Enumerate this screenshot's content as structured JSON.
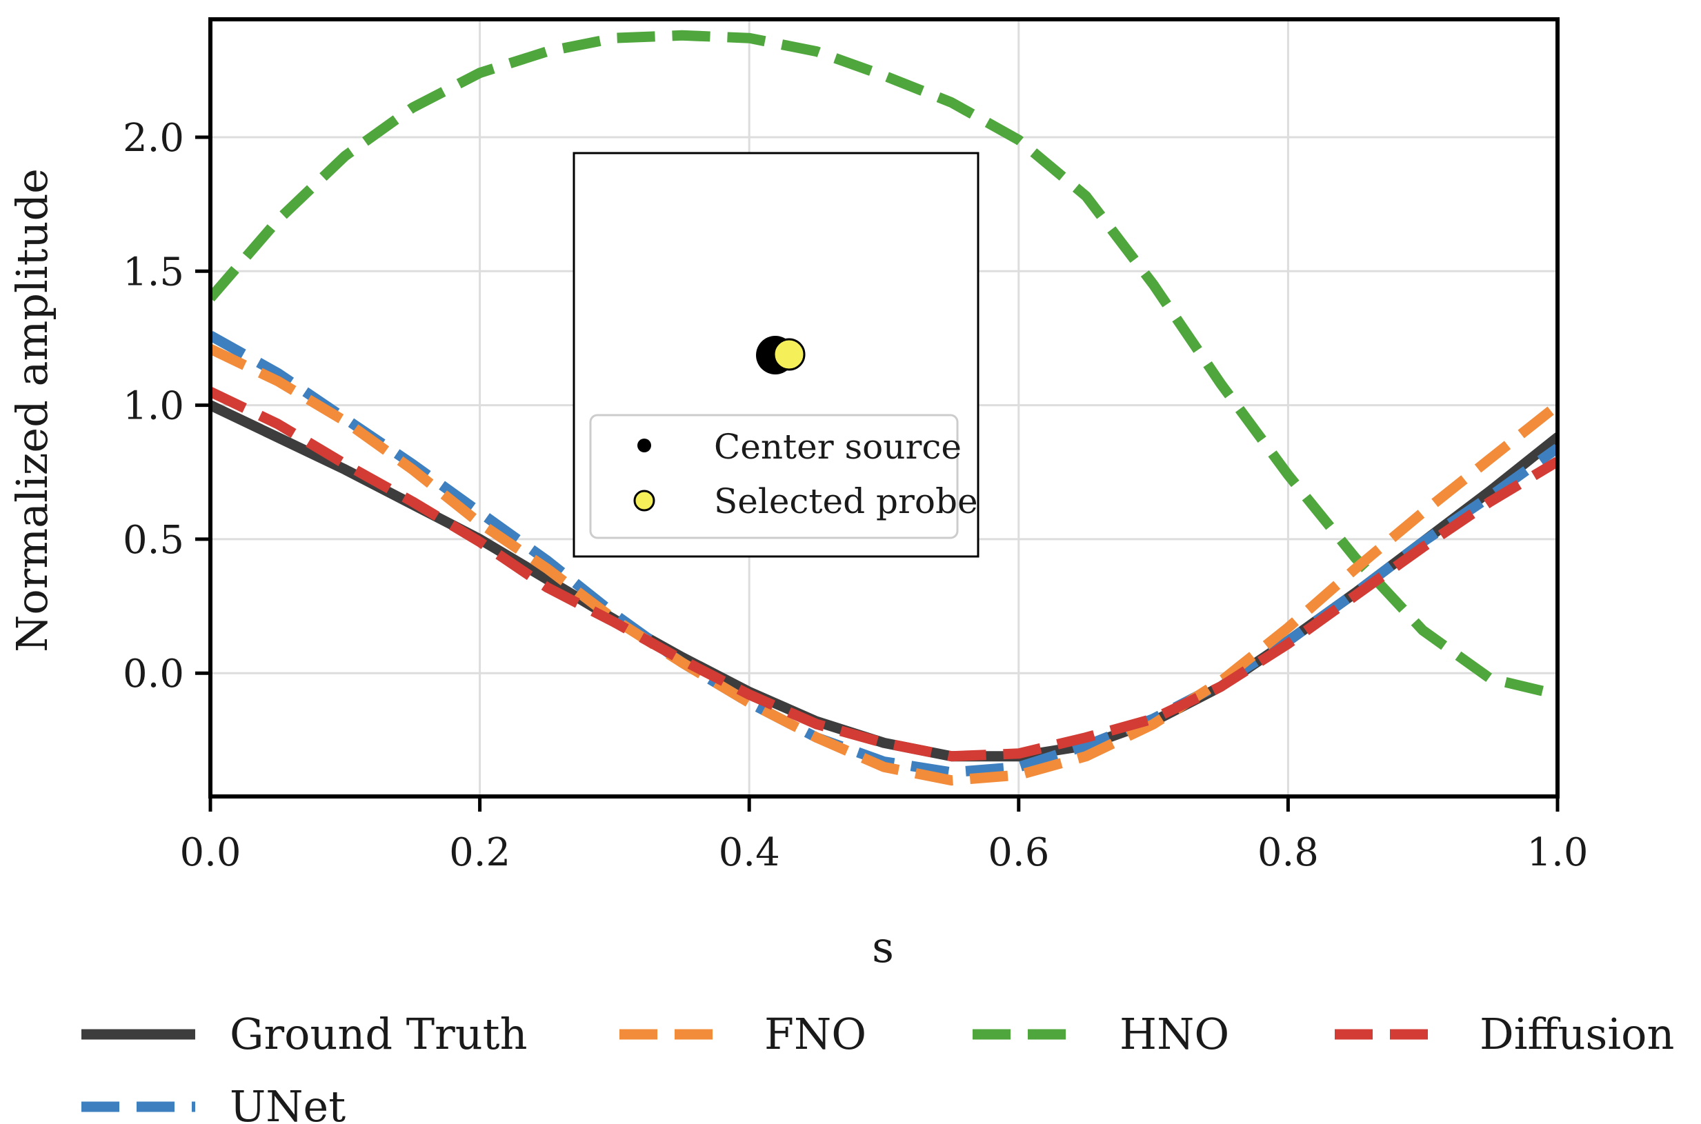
{
  "chart_data": {
    "type": "line",
    "title": "",
    "xlabel": "s",
    "ylabel": "Normalized amplitude",
    "xlim": [
      0.0,
      1.0
    ],
    "ylim": [
      -0.46,
      2.44
    ],
    "xticks": [
      0.0,
      0.2,
      0.4,
      0.6,
      0.8,
      1.0
    ],
    "xtick_labels": [
      "0.0",
      "0.2",
      "0.4",
      "0.6",
      "0.8",
      "1.0"
    ],
    "yticks": [
      0.0,
      0.5,
      1.0,
      1.5,
      2.0
    ],
    "ytick_labels": [
      "0.0",
      "0.5",
      "1.0",
      "1.5",
      "2.0"
    ],
    "grid": true,
    "legend_position": "bottom",
    "series": [
      {
        "name": "Ground Truth",
        "color": "#3d3d3d",
        "style": "solid",
        "x": [
          0.0,
          0.05,
          0.1,
          0.15,
          0.2,
          0.25,
          0.3,
          0.35,
          0.4,
          0.45,
          0.5,
          0.55,
          0.6,
          0.65,
          0.7,
          0.75,
          0.8,
          0.85,
          0.9,
          0.95,
          1.0
        ],
        "y": [
          1.0,
          0.88,
          0.76,
          0.63,
          0.5,
          0.35,
          0.2,
          0.06,
          -0.07,
          -0.18,
          -0.26,
          -0.31,
          -0.31,
          -0.27,
          -0.18,
          -0.05,
          0.12,
          0.3,
          0.49,
          0.68,
          0.88
        ]
      },
      {
        "name": "FNO",
        "color": "#f28c3a",
        "style": "dashed",
        "x": [
          0.0,
          0.05,
          0.1,
          0.15,
          0.2,
          0.25,
          0.3,
          0.35,
          0.4,
          0.45,
          0.5,
          0.55,
          0.6,
          0.65,
          0.7,
          0.75,
          0.8,
          0.85,
          0.9,
          0.95,
          1.0
        ],
        "y": [
          1.21,
          1.09,
          0.94,
          0.76,
          0.56,
          0.39,
          0.2,
          0.04,
          -0.11,
          -0.24,
          -0.35,
          -0.4,
          -0.38,
          -0.31,
          -0.19,
          -0.03,
          0.17,
          0.39,
          0.6,
          0.8,
          1.0
        ]
      },
      {
        "name": "HNO",
        "color": "#4fa63c",
        "style": "dashed",
        "x": [
          0.0,
          0.05,
          0.1,
          0.15,
          0.2,
          0.25,
          0.3,
          0.35,
          0.4,
          0.45,
          0.5,
          0.55,
          0.6,
          0.65,
          0.7,
          0.75,
          0.8,
          0.85,
          0.9,
          0.95,
          1.0
        ],
        "y": [
          1.4,
          1.69,
          1.93,
          2.11,
          2.24,
          2.32,
          2.37,
          2.38,
          2.37,
          2.32,
          2.23,
          2.13,
          1.99,
          1.78,
          1.45,
          1.08,
          0.74,
          0.43,
          0.16,
          -0.02,
          -0.08
        ]
      },
      {
        "name": "Diffusion",
        "color": "#d23c34",
        "style": "dashed",
        "x": [
          0.0,
          0.05,
          0.1,
          0.15,
          0.2,
          0.25,
          0.3,
          0.35,
          0.4,
          0.45,
          0.5,
          0.55,
          0.6,
          0.65,
          0.7,
          0.75,
          0.8,
          0.85,
          0.9,
          0.95,
          1.0
        ],
        "y": [
          1.05,
          0.93,
          0.78,
          0.64,
          0.49,
          0.32,
          0.19,
          0.05,
          -0.08,
          -0.19,
          -0.26,
          -0.31,
          -0.3,
          -0.24,
          -0.17,
          -0.05,
          0.11,
          0.29,
          0.47,
          0.64,
          0.79
        ]
      },
      {
        "name": "UNet",
        "color": "#3d7fbf",
        "style": "dashed",
        "x": [
          0.0,
          0.05,
          0.1,
          0.15,
          0.2,
          0.25,
          0.3,
          0.35,
          0.4,
          0.45,
          0.5,
          0.55,
          0.6,
          0.65,
          0.7,
          0.75,
          0.8,
          0.85,
          0.9,
          0.95,
          1.0
        ],
        "y": [
          1.26,
          1.12,
          0.95,
          0.78,
          0.6,
          0.42,
          0.22,
          0.04,
          -0.11,
          -0.24,
          -0.33,
          -0.37,
          -0.35,
          -0.27,
          -0.17,
          -0.04,
          0.12,
          0.3,
          0.49,
          0.66,
          0.84
        ]
      }
    ],
    "inset": {
      "markers": [
        {
          "name": "Center source",
          "color": "#000000",
          "edge": "#000000"
        },
        {
          "name": "Selected probe",
          "color": "#f5f05a",
          "edge": "#000000"
        }
      ]
    }
  }
}
